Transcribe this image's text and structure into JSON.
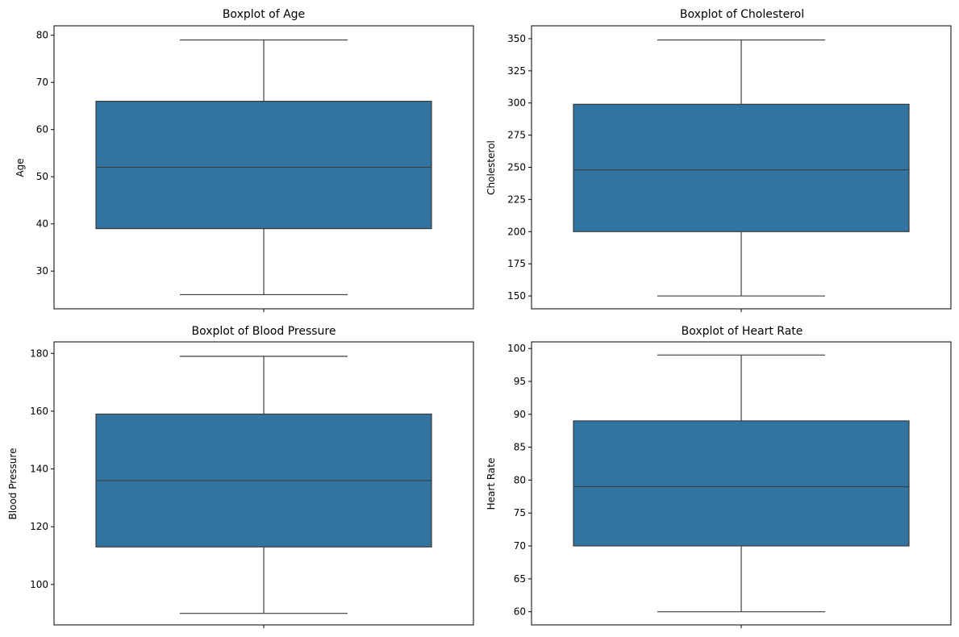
{
  "chart_data": [
    {
      "type": "box",
      "title": "Boxplot of Age",
      "xlabel": "",
      "ylabel": "Age",
      "ylim": [
        22,
        82
      ],
      "yticks": [
        30,
        40,
        50,
        60,
        70,
        80
      ],
      "ytick_labels": [
        "30",
        "40",
        "50",
        "60",
        "70",
        "80"
      ],
      "box": {
        "min": 25,
        "q1": 39,
        "median": 52,
        "q3": 66,
        "max": 79
      },
      "color": "#3274a1"
    },
    {
      "type": "box",
      "title": "Boxplot of Cholesterol",
      "xlabel": "",
      "ylabel": "Cholesterol",
      "ylim": [
        140,
        360
      ],
      "yticks": [
        150,
        175,
        200,
        225,
        250,
        275,
        300,
        325,
        350
      ],
      "ytick_labels": [
        "150",
        "175",
        "200",
        "225",
        "250",
        "275",
        "300",
        "325",
        "350"
      ],
      "box": {
        "min": 150,
        "q1": 200,
        "median": 248,
        "q3": 299,
        "max": 349
      },
      "color": "#3274a1"
    },
    {
      "type": "box",
      "title": "Boxplot of Blood Pressure",
      "xlabel": "",
      "ylabel": "Blood Pressure",
      "ylim": [
        86,
        184
      ],
      "yticks": [
        100,
        120,
        140,
        160,
        180
      ],
      "ytick_labels": [
        "100",
        "120",
        "140",
        "160",
        "180"
      ],
      "box": {
        "min": 90,
        "q1": 113,
        "median": 136,
        "q3": 159,
        "max": 179
      },
      "color": "#3274a1"
    },
    {
      "type": "box",
      "title": "Boxplot of Heart Rate",
      "xlabel": "",
      "ylabel": "Heart Rate",
      "ylim": [
        58,
        101
      ],
      "yticks": [
        60,
        65,
        70,
        75,
        80,
        85,
        90,
        95,
        100
      ],
      "ytick_labels": [
        "60",
        "65",
        "70",
        "75",
        "80",
        "85",
        "90",
        "95",
        "100"
      ],
      "box": {
        "min": 60,
        "q1": 70,
        "median": 79,
        "q3": 89,
        "max": 99
      },
      "color": "#3274a1"
    }
  ],
  "colors": {
    "box_fill": "#3274a1",
    "line": "#3d3d3d",
    "frame": "#000000"
  }
}
